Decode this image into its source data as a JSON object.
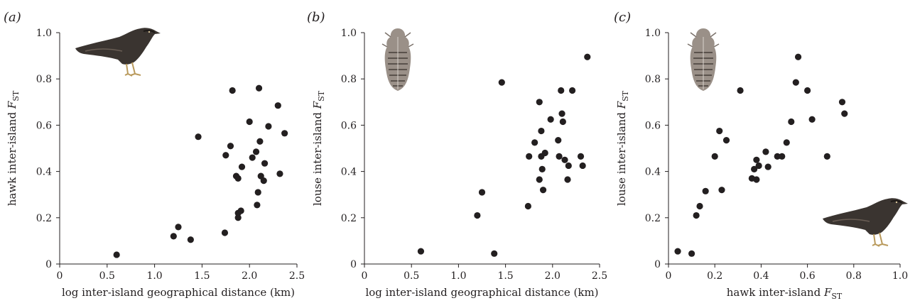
{
  "chart_data": [
    {
      "type": "scatter",
      "panel_label": "(a)",
      "xlabel": "log inter-island geographical distance (km)",
      "ylabel_prefix": "hawk inter-island ",
      "ylabel_var": "F",
      "ylabel_sub": "ST",
      "xlim": [
        0,
        2.5
      ],
      "ylim": [
        0,
        1.0
      ],
      "xticks": [
        0,
        0.5,
        1.0,
        1.5,
        2.0,
        2.5
      ],
      "xtick_labels": [
        "0",
        "0.5",
        "1.0",
        "1.5",
        "2.0",
        "2.5"
      ],
      "yticks": [
        0,
        0.2,
        0.4,
        0.6,
        0.8,
        1.0
      ],
      "ytick_labels": [
        "0",
        "0.2",
        "0.4",
        "0.6",
        "0.8",
        "1.0"
      ],
      "points": [
        {
          "x": 0.6,
          "y": 0.04
        },
        {
          "x": 1.2,
          "y": 0.12
        },
        {
          "x": 1.25,
          "y": 0.16
        },
        {
          "x": 1.38,
          "y": 0.105
        },
        {
          "x": 1.46,
          "y": 0.55
        },
        {
          "x": 1.74,
          "y": 0.135
        },
        {
          "x": 1.75,
          "y": 0.47
        },
        {
          "x": 1.8,
          "y": 0.51
        },
        {
          "x": 1.82,
          "y": 0.75
        },
        {
          "x": 1.86,
          "y": 0.38
        },
        {
          "x": 1.88,
          "y": 0.37
        },
        {
          "x": 1.88,
          "y": 0.2
        },
        {
          "x": 1.88,
          "y": 0.22
        },
        {
          "x": 1.91,
          "y": 0.23
        },
        {
          "x": 1.92,
          "y": 0.42
        },
        {
          "x": 2.0,
          "y": 0.615
        },
        {
          "x": 2.03,
          "y": 0.46
        },
        {
          "x": 2.07,
          "y": 0.485
        },
        {
          "x": 2.08,
          "y": 0.255
        },
        {
          "x": 2.09,
          "y": 0.31
        },
        {
          "x": 2.1,
          "y": 0.76
        },
        {
          "x": 2.11,
          "y": 0.53
        },
        {
          "x": 2.12,
          "y": 0.38
        },
        {
          "x": 2.15,
          "y": 0.36
        },
        {
          "x": 2.16,
          "y": 0.435
        },
        {
          "x": 2.2,
          "y": 0.595
        },
        {
          "x": 2.3,
          "y": 0.685
        },
        {
          "x": 2.32,
          "y": 0.39
        },
        {
          "x": 2.37,
          "y": 0.565
        }
      ]
    },
    {
      "type": "scatter",
      "panel_label": "(b)",
      "xlabel": "log inter-island geographical distance (km)",
      "ylabel_prefix": "louse inter-island ",
      "ylabel_var": "F",
      "ylabel_sub": "ST",
      "xlim": [
        0,
        2.5
      ],
      "ylim": [
        0,
        1.0
      ],
      "xticks": [
        0,
        0.5,
        1.0,
        1.5,
        2.0,
        2.5
      ],
      "xtick_labels": [
        "0",
        "0.5",
        "1.0",
        "1.5",
        "2.0",
        "2.5"
      ],
      "yticks": [
        0,
        0.2,
        0.4,
        0.6,
        0.8,
        1.0
      ],
      "ytick_labels": [
        "0",
        "0.2",
        "0.4",
        "0.6",
        "0.8",
        "1.0"
      ],
      "points": [
        {
          "x": 0.6,
          "y": 0.055
        },
        {
          "x": 1.2,
          "y": 0.21
        },
        {
          "x": 1.25,
          "y": 0.31
        },
        {
          "x": 1.38,
          "y": 0.045
        },
        {
          "x": 1.46,
          "y": 0.785
        },
        {
          "x": 1.74,
          "y": 0.25
        },
        {
          "x": 1.75,
          "y": 0.465
        },
        {
          "x": 1.81,
          "y": 0.525
        },
        {
          "x": 1.86,
          "y": 0.7
        },
        {
          "x": 1.86,
          "y": 0.365
        },
        {
          "x": 1.88,
          "y": 0.575
        },
        {
          "x": 1.88,
          "y": 0.465
        },
        {
          "x": 1.89,
          "y": 0.41
        },
        {
          "x": 1.9,
          "y": 0.32
        },
        {
          "x": 1.92,
          "y": 0.48
        },
        {
          "x": 1.98,
          "y": 0.625
        },
        {
          "x": 2.06,
          "y": 0.535
        },
        {
          "x": 2.07,
          "y": 0.465
        },
        {
          "x": 2.09,
          "y": 0.75
        },
        {
          "x": 2.1,
          "y": 0.65
        },
        {
          "x": 2.11,
          "y": 0.615
        },
        {
          "x": 2.13,
          "y": 0.45
        },
        {
          "x": 2.16,
          "y": 0.365
        },
        {
          "x": 2.17,
          "y": 0.425
        },
        {
          "x": 2.21,
          "y": 0.75
        },
        {
          "x": 2.3,
          "y": 0.465
        },
        {
          "x": 2.32,
          "y": 0.425
        },
        {
          "x": 2.37,
          "y": 0.895
        }
      ]
    },
    {
      "type": "scatter",
      "panel_label": "(c)",
      "xlabel_prefix": "hawk inter-island ",
      "xlabel_var": "F",
      "xlabel_sub": "ST",
      "ylabel_prefix": "louse inter-island ",
      "ylabel_var": "F",
      "ylabel_sub": "ST",
      "xlim": [
        0,
        1.0
      ],
      "ylim": [
        0,
        1.0
      ],
      "xticks": [
        0,
        0.2,
        0.4,
        0.6,
        0.8,
        1.0
      ],
      "xtick_labels": [
        "0",
        "0.2",
        "0.4",
        "0.6",
        "0.8",
        "1.0"
      ],
      "yticks": [
        0,
        0.2,
        0.4,
        0.6,
        0.8,
        1.0
      ],
      "ytick_labels": [
        "0",
        "0.2",
        "0.4",
        "0.6",
        "0.8",
        "1.0"
      ],
      "points": [
        {
          "x": 0.04,
          "y": 0.055
        },
        {
          "x": 0.1,
          "y": 0.045
        },
        {
          "x": 0.12,
          "y": 0.21
        },
        {
          "x": 0.135,
          "y": 0.25
        },
        {
          "x": 0.16,
          "y": 0.315
        },
        {
          "x": 0.2,
          "y": 0.465
        },
        {
          "x": 0.22,
          "y": 0.575
        },
        {
          "x": 0.23,
          "y": 0.32
        },
        {
          "x": 0.25,
          "y": 0.535
        },
        {
          "x": 0.31,
          "y": 0.75
        },
        {
          "x": 0.36,
          "y": 0.37
        },
        {
          "x": 0.37,
          "y": 0.41
        },
        {
          "x": 0.38,
          "y": 0.365
        },
        {
          "x": 0.38,
          "y": 0.45
        },
        {
          "x": 0.39,
          "y": 0.425
        },
        {
          "x": 0.42,
          "y": 0.485
        },
        {
          "x": 0.43,
          "y": 0.42
        },
        {
          "x": 0.47,
          "y": 0.465
        },
        {
          "x": 0.49,
          "y": 0.465
        },
        {
          "x": 0.51,
          "y": 0.525
        },
        {
          "x": 0.53,
          "y": 0.615
        },
        {
          "x": 0.55,
          "y": 0.785
        },
        {
          "x": 0.56,
          "y": 0.895
        },
        {
          "x": 0.6,
          "y": 0.75
        },
        {
          "x": 0.62,
          "y": 0.625
        },
        {
          "x": 0.685,
          "y": 0.465
        },
        {
          "x": 0.75,
          "y": 0.7
        },
        {
          "x": 0.76,
          "y": 0.65
        }
      ]
    }
  ],
  "illustrations": {
    "hawk_icon": "hawk-illustration",
    "louse_icon": "louse-illustration"
  },
  "colors": {
    "ink": "#231f20",
    "hawk_body": "#3a3430",
    "louse_body": "#9a9088"
  }
}
